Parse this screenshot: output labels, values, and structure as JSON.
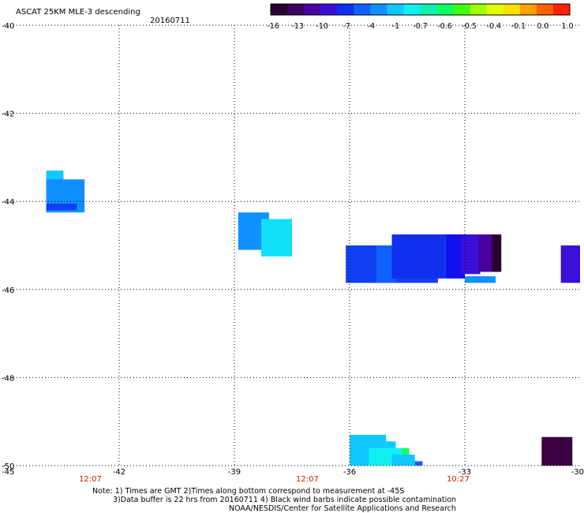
{
  "header": {
    "title": "ASCAT 25KM MLE-3 descending",
    "date": "20160711"
  },
  "colorbar": {
    "colors": [
      "#2a0030",
      "#3c0060",
      "#4a00a0",
      "#3a10d8",
      "#1030f0",
      "#1060ff",
      "#1090ff",
      "#10c8ff",
      "#10f0f0",
      "#10f0b0",
      "#10ff60",
      "#40ff10",
      "#a0ff00",
      "#e0ff00",
      "#ffe000",
      "#ffa000",
      "#ff6000",
      "#ff2000"
    ],
    "labels": [
      "-16",
      "-13",
      "-10",
      "-7",
      "-4",
      "-1",
      "-0.7",
      "-0.6",
      "-0.5",
      "-0.4",
      "-0.1",
      "0.0",
      "1.0"
    ]
  },
  "axes": {
    "lon_ticks": [
      "-45",
      "-42",
      "-39",
      "-36",
      "-33",
      "-30"
    ],
    "lat_ticks": [
      "-40",
      "-42",
      "-44",
      "-46",
      "-48",
      "-50"
    ],
    "lon_range": [
      -45,
      -30
    ],
    "lat_range": [
      -40,
      -50
    ]
  },
  "times": [
    "12:07",
    "12:07",
    "10:27"
  ],
  "notes": {
    "line1": "Note: 1) Times are GMT 2)Times along bottom correspond to measurement at -45S",
    "line2": "3)Data buffer is 22 hrs from 20160711 4) Black wind barbs indicate possible contamination",
    "line3": "NOAA/NESDIS/Center for Satellite Applications and Research"
  },
  "cells": [
    {
      "lon": -43.9,
      "lat": -43.3,
      "w": 0.45,
      "h": 0.55,
      "color": "#10c8ff"
    },
    {
      "lon": -43.9,
      "lat": -43.5,
      "w": 1.0,
      "h": 0.75,
      "color": "#1090ff"
    },
    {
      "lon": -43.9,
      "lat": -44.05,
      "w": 0.8,
      "h": 0.15,
      "color": "#1040f0"
    },
    {
      "lon": -38.9,
      "lat": -44.25,
      "w": 0.8,
      "h": 0.85,
      "color": "#1090ff"
    },
    {
      "lon": -38.3,
      "lat": -44.4,
      "w": 0.8,
      "h": 0.85,
      "color": "#10e0f8"
    },
    {
      "lon": -36.1,
      "lat": -45.0,
      "w": 2.4,
      "h": 0.85,
      "color": "#1040f0"
    },
    {
      "lon": -35.3,
      "lat": -45.0,
      "w": 0.5,
      "h": 0.85,
      "color": "#1060ff"
    },
    {
      "lon": -34.9,
      "lat": -44.75,
      "w": 1.4,
      "h": 1.0,
      "color": "#1030f0"
    },
    {
      "lon": -33.5,
      "lat": -44.75,
      "w": 0.5,
      "h": 1.0,
      "color": "#1010f0"
    },
    {
      "lon": -33.1,
      "lat": -44.75,
      "w": 0.5,
      "h": 0.9,
      "color": "#3a10d8"
    },
    {
      "lon": -32.65,
      "lat": -44.75,
      "w": 0.35,
      "h": 0.85,
      "color": "#4a00a0"
    },
    {
      "lon": -32.3,
      "lat": -44.75,
      "w": 0.25,
      "h": 0.85,
      "color": "#2a0030"
    },
    {
      "lon": -33.0,
      "lat": -45.7,
      "w": 0.8,
      "h": 0.15,
      "color": "#1090ff"
    },
    {
      "lon": -30.5,
      "lat": -45.0,
      "w": 0.5,
      "h": 0.85,
      "color": "#3a10d8"
    },
    {
      "lon": -36.0,
      "lat": -49.3,
      "w": 0.95,
      "h": 0.7,
      "color": "#10c8ff"
    },
    {
      "lon": -35.05,
      "lat": -49.45,
      "w": 0.25,
      "h": 0.2,
      "color": "#10c8ff"
    },
    {
      "lon": -35.5,
      "lat": -49.6,
      "w": 0.85,
      "h": 0.4,
      "color": "#10f0f0"
    },
    {
      "lon": -34.65,
      "lat": -49.6,
      "w": 0.2,
      "h": 0.4,
      "color": "#10ff60"
    },
    {
      "lon": -34.9,
      "lat": -49.75,
      "w": 0.6,
      "h": 0.25,
      "color": "#10c8ff"
    },
    {
      "lon": -34.3,
      "lat": -49.9,
      "w": 0.2,
      "h": 0.1,
      "color": "#1060ff"
    },
    {
      "lon": -31.0,
      "lat": -49.35,
      "w": 0.8,
      "h": 0.65,
      "color": "#3a0040"
    }
  ]
}
